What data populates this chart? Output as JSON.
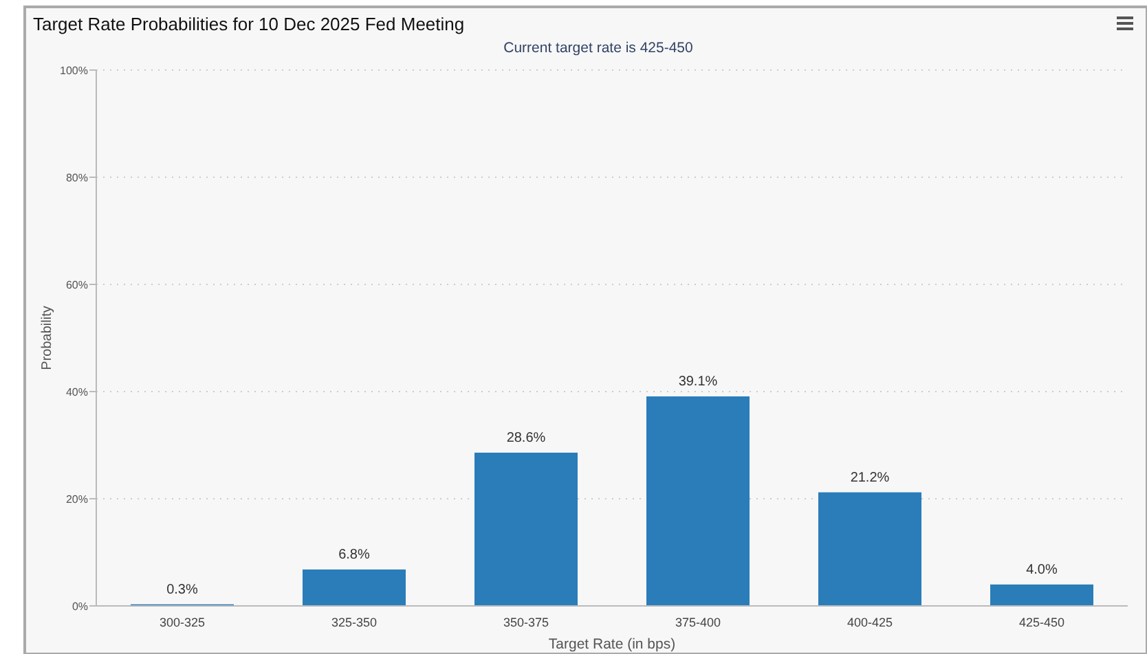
{
  "chart_data": {
    "type": "bar",
    "title": "Target Rate Probabilities for 10 Dec 2025 Fed Meeting",
    "subtitle": "Current target rate is 425-450",
    "xlabel": "Target Rate (in bps)",
    "ylabel": "Probability",
    "categories": [
      "300-325",
      "325-350",
      "350-375",
      "375-400",
      "400-425",
      "425-450"
    ],
    "values": [
      0.3,
      6.8,
      28.6,
      39.1,
      21.2,
      4.0
    ],
    "value_labels": [
      "0.3%",
      "6.8%",
      "28.6%",
      "39.1%",
      "21.2%",
      "4.0%"
    ],
    "color": "#2a7db9",
    "ylim": [
      0,
      100
    ],
    "yticks": [
      {
        "value": 0,
        "label": "0%"
      },
      {
        "value": 20,
        "label": "20%"
      },
      {
        "value": 40,
        "label": "40%"
      },
      {
        "value": 60,
        "label": "60%"
      },
      {
        "value": 80,
        "label": "80%"
      },
      {
        "value": 100,
        "label": "100%"
      }
    ],
    "grid": "y"
  }
}
